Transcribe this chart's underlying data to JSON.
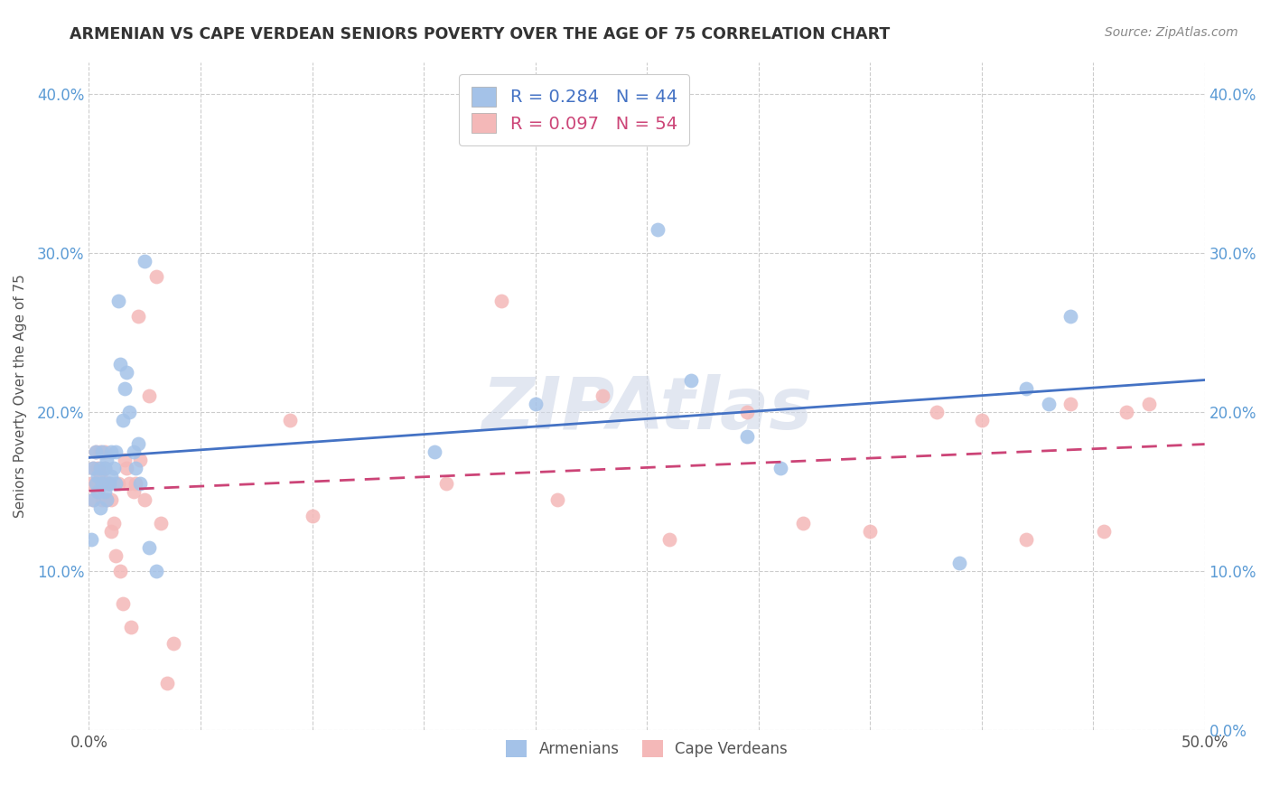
{
  "title": "ARMENIAN VS CAPE VERDEAN SENIORS POVERTY OVER THE AGE OF 75 CORRELATION CHART",
  "source": "Source: ZipAtlas.com",
  "ylabel": "Seniors Poverty Over the Age of 75",
  "xlim": [
    0.0,
    0.5
  ],
  "ylim": [
    0.0,
    0.42
  ],
  "yticks": [
    0.0,
    0.1,
    0.2,
    0.3,
    0.4
  ],
  "armenian_R": 0.284,
  "armenian_N": 44,
  "capeverdean_R": 0.097,
  "capeverdean_N": 54,
  "armenian_color": "#a4c2e8",
  "capeverdean_color": "#f4b8b8",
  "trendline_armenian_color": "#4472c4",
  "trendline_capeverdean_color": "#cc4477",
  "watermark": "ZIPAtlas",
  "background_color": "#ffffff",
  "grid_color": "#cccccc",
  "armenian_x": [
    0.001,
    0.002,
    0.002,
    0.003,
    0.003,
    0.004,
    0.004,
    0.005,
    0.005,
    0.006,
    0.006,
    0.007,
    0.007,
    0.008,
    0.008,
    0.009,
    0.01,
    0.01,
    0.011,
    0.012,
    0.012,
    0.013,
    0.014,
    0.015,
    0.016,
    0.017,
    0.018,
    0.02,
    0.021,
    0.022,
    0.023,
    0.025,
    0.027,
    0.03,
    0.155,
    0.2,
    0.255,
    0.27,
    0.295,
    0.31,
    0.39,
    0.42,
    0.43,
    0.44
  ],
  "armenian_y": [
    0.12,
    0.145,
    0.165,
    0.155,
    0.175,
    0.16,
    0.15,
    0.14,
    0.165,
    0.155,
    0.175,
    0.15,
    0.165,
    0.145,
    0.17,
    0.155,
    0.16,
    0.175,
    0.165,
    0.155,
    0.175,
    0.27,
    0.23,
    0.195,
    0.215,
    0.225,
    0.2,
    0.175,
    0.165,
    0.18,
    0.155,
    0.295,
    0.115,
    0.1,
    0.175,
    0.205,
    0.315,
    0.22,
    0.185,
    0.165,
    0.105,
    0.215,
    0.205,
    0.26
  ],
  "capeverdean_x": [
    0.001,
    0.002,
    0.002,
    0.003,
    0.003,
    0.004,
    0.004,
    0.005,
    0.005,
    0.006,
    0.006,
    0.007,
    0.007,
    0.008,
    0.008,
    0.009,
    0.01,
    0.01,
    0.011,
    0.012,
    0.013,
    0.014,
    0.015,
    0.016,
    0.017,
    0.018,
    0.019,
    0.02,
    0.021,
    0.022,
    0.023,
    0.025,
    0.027,
    0.03,
    0.032,
    0.035,
    0.038,
    0.09,
    0.1,
    0.16,
    0.185,
    0.21,
    0.23,
    0.26,
    0.295,
    0.32,
    0.35,
    0.38,
    0.4,
    0.42,
    0.44,
    0.455,
    0.465,
    0.475
  ],
  "capeverdean_y": [
    0.155,
    0.145,
    0.165,
    0.155,
    0.175,
    0.15,
    0.165,
    0.16,
    0.175,
    0.145,
    0.155,
    0.165,
    0.175,
    0.155,
    0.145,
    0.155,
    0.125,
    0.145,
    0.13,
    0.11,
    0.155,
    0.1,
    0.08,
    0.17,
    0.165,
    0.155,
    0.065,
    0.15,
    0.155,
    0.26,
    0.17,
    0.145,
    0.21,
    0.285,
    0.13,
    0.03,
    0.055,
    0.195,
    0.135,
    0.155,
    0.27,
    0.145,
    0.21,
    0.12,
    0.2,
    0.13,
    0.125,
    0.2,
    0.195,
    0.12,
    0.205,
    0.125,
    0.2,
    0.205
  ]
}
